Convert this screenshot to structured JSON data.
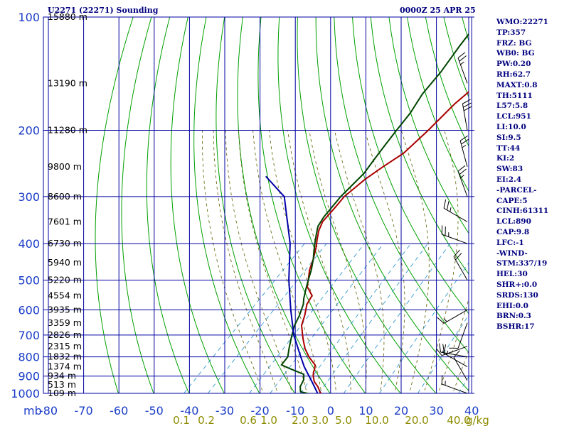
{
  "header": {
    "title": "U2271 (22271) Sounding",
    "datetime": "0000Z 25 APR 25"
  },
  "indices": [
    "WMO:22271",
    "TP:357",
    "FRZ: BG",
    "WB0: BG",
    "PW:0.20",
    "RH:62.7",
    "MAXT:0.8",
    "TH:5111",
    "L57:5.8",
    "LCL:951",
    "LI:10.0",
    "SI:9.5",
    "TT:44",
    "KI:2",
    "SW:83",
    "EI:2.4",
    "-PARCEL-",
    "CAPE:5",
    "CINH:61311",
    "LCL:890",
    "CAP:9.8",
    "LFC:-1",
    "-WIND-",
    "STM:337/19",
    "HEL:30",
    "SHR+:0.0",
    "SRDS:130",
    "EHI:0.0",
    "BRN:0.3",
    "BSHR:17"
  ],
  "colors": {
    "grid": "#0000a0",
    "dry_adiabat": "#00a000",
    "moist_adiabat": "#606000",
    "mixing_ratio": "#3399cc",
    "temperature": "#aa0000",
    "dewpoint": "#004400",
    "parcel": "#0000aa",
    "text": "#00007f",
    "axis_text": "#1a3cc8",
    "mixing_text": "#8c8c00"
  },
  "chart_data": {
    "type": "line",
    "x_axis": {
      "unit_label": "mb",
      "ticks": [
        -80,
        -70,
        -60,
        -50,
        -40,
        -30,
        -20,
        -10,
        0,
        10,
        20,
        30,
        40
      ],
      "tick_labels": [
        "-80",
        "-70",
        "-60",
        "-50",
        "-40",
        "-30",
        "-20",
        "-10",
        "0",
        "10",
        "20",
        "30",
        "40"
      ]
    },
    "y_axis": {
      "scale": "log",
      "ticks": [
        100,
        200,
        300,
        400,
        500,
        600,
        700,
        800,
        900,
        1000
      ],
      "tick_labels": [
        "100",
        "200",
        "300",
        "400",
        "500",
        "600",
        "700",
        "800",
        "900",
        "1000"
      ]
    },
    "height_labels": [
      {
        "p": 100,
        "label": "15880 m"
      },
      {
        "p": 150,
        "label": "13190 m"
      },
      {
        "p": 200,
        "label": "11280 m"
      },
      {
        "p": 250,
        "label": "9800 m"
      },
      {
        "p": 300,
        "label": "8600 m"
      },
      {
        "p": 350,
        "label": "7601 m"
      },
      {
        "p": 400,
        "label": "6730 m"
      },
      {
        "p": 450,
        "label": "5940 m"
      },
      {
        "p": 500,
        "label": "5220 m"
      },
      {
        "p": 550,
        "label": "4554 m"
      },
      {
        "p": 600,
        "label": "3935 m"
      },
      {
        "p": 650,
        "label": "3359 m"
      },
      {
        "p": 700,
        "label": "2826 m"
      },
      {
        "p": 750,
        "label": "2315 m"
      },
      {
        "p": 800,
        "label": "1832 m"
      },
      {
        "p": 850,
        "label": "1374 m"
      },
      {
        "p": 900,
        "label": "934 m"
      },
      {
        "p": 950,
        "label": "513 m"
      },
      {
        "p": 1000,
        "label": "109 m"
      }
    ],
    "mixing_ratio_labels": [
      {
        "w": 0.1,
        "label": "0.1"
      },
      {
        "w": 0.2,
        "label": "0.2"
      },
      {
        "w": 0.6,
        "label": "0.6"
      },
      {
        "w": 1.0,
        "label": "1.0"
      },
      {
        "w": 2.0,
        "label": "2.0"
      },
      {
        "w": 3.0,
        "label": "3.0"
      },
      {
        "w": 5.0,
        "label": "5.0"
      },
      {
        "w": 10.0,
        "label": "10.0"
      },
      {
        "w": 20.0,
        "label": "20.0"
      },
      {
        "w": 40.0,
        "label": "40.0"
      }
    ],
    "mixing_unit": "g/kg",
    "series": [
      {
        "name": "Temperature",
        "key": "temperature",
        "points": [
          [
            1010,
            -2
          ],
          [
            990,
            -3.5
          ],
          [
            960,
            -5.5
          ],
          [
            930,
            -8
          ],
          [
            900,
            -9.8
          ],
          [
            880,
            -10.8
          ],
          [
            860,
            -11.5
          ],
          [
            840,
            -12.5
          ],
          [
            800,
            -16.5
          ],
          [
            760,
            -20
          ],
          [
            720,
            -23
          ],
          [
            700,
            -24.5
          ],
          [
            660,
            -27.5
          ],
          [
            620,
            -29.5
          ],
          [
            580,
            -32
          ],
          [
            550,
            -33
          ],
          [
            520,
            -37
          ],
          [
            500,
            -38.5
          ],
          [
            470,
            -41
          ],
          [
            440,
            -43
          ],
          [
            410,
            -45.5
          ],
          [
            390,
            -47.5
          ],
          [
            370,
            -49.5
          ],
          [
            350,
            -51
          ],
          [
            320,
            -51.5
          ],
          [
            300,
            -52
          ],
          [
            270,
            -51
          ],
          [
            250,
            -49.5
          ],
          [
            230,
            -47.5
          ],
          [
            200,
            -47
          ],
          [
            170,
            -47
          ],
          [
            150,
            -46
          ],
          [
            130,
            -47.5
          ],
          [
            110,
            -49.5
          ],
          [
            100,
            -50.5
          ]
        ]
      },
      {
        "name": "Dewpoint",
        "key": "dewpoint",
        "points": [
          [
            1005,
            -5.5
          ],
          [
            990,
            -9
          ],
          [
            960,
            -10.5
          ],
          [
            940,
            -11
          ],
          [
            920,
            -11.5
          ],
          [
            890,
            -13
          ],
          [
            860,
            -18.5
          ],
          [
            840,
            -22
          ],
          [
            800,
            -22.5
          ],
          [
            760,
            -24.5
          ],
          [
            720,
            -26.5
          ],
          [
            700,
            -27.5
          ],
          [
            660,
            -29.5
          ],
          [
            620,
            -31
          ],
          [
            580,
            -33
          ],
          [
            560,
            -34.5
          ],
          [
            530,
            -36.5
          ],
          [
            500,
            -38.5
          ],
          [
            470,
            -40.5
          ],
          [
            440,
            -43
          ],
          [
            420,
            -45
          ],
          [
            400,
            -47
          ],
          [
            380,
            -49
          ],
          [
            360,
            -51
          ],
          [
            340,
            -52
          ],
          [
            320,
            -52.5
          ],
          [
            300,
            -53
          ],
          [
            280,
            -53
          ],
          [
            260,
            -53
          ],
          [
            240,
            -54
          ],
          [
            220,
            -55
          ],
          [
            200,
            -56
          ],
          [
            180,
            -57
          ],
          [
            160,
            -59
          ],
          [
            140,
            -60
          ],
          [
            120,
            -62
          ],
          [
            100,
            -64
          ]
        ]
      },
      {
        "name": "Parcel",
        "key": "parcel",
        "points": [
          [
            1010,
            -3
          ],
          [
            950,
            -7.2
          ],
          [
            900,
            -11
          ],
          [
            850,
            -15
          ],
          [
            800,
            -18.8
          ],
          [
            700,
            -27
          ],
          [
            600,
            -35
          ],
          [
            500,
            -44
          ],
          [
            400,
            -54
          ],
          [
            300,
            -69
          ],
          [
            265,
            -80
          ]
        ]
      }
    ],
    "wind_barbs": [
      {
        "p": 150,
        "dir": 340,
        "kt": 25
      },
      {
        "p": 200,
        "dir": 350,
        "kt": 30
      },
      {
        "p": 250,
        "dir": 345,
        "kt": 25
      },
      {
        "p": 300,
        "dir": 340,
        "kt": 25
      },
      {
        "p": 350,
        "dir": 300,
        "kt": 25
      },
      {
        "p": 400,
        "dir": 290,
        "kt": 25
      },
      {
        "p": 500,
        "dir": 330,
        "kt": 20
      },
      {
        "p": 600,
        "dir": 240,
        "kt": 15
      },
      {
        "p": 650,
        "dir": 200,
        "kt": 10
      },
      {
        "p": 750,
        "dir": 250,
        "kt": 15
      },
      {
        "p": 800,
        "dir": 280,
        "kt": 20
      },
      {
        "p": 850,
        "dir": 300,
        "kt": 15
      },
      {
        "p": 925,
        "dir": 330,
        "kt": 10
      },
      {
        "p": 1000,
        "dir": 290,
        "kt": 15
      }
    ]
  }
}
